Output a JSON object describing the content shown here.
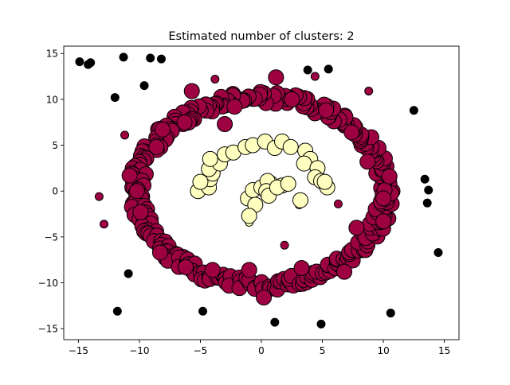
{
  "chart_data": {
    "type": "scatter",
    "title": "Estimated number of clusters: 2",
    "xlabel": "",
    "ylabel": "",
    "xlim": [
      -16.2,
      16.2
    ],
    "ylim": [
      -16.2,
      15.8
    ],
    "xticks": [
      -15,
      -10,
      -5,
      0,
      5,
      10,
      15
    ],
    "yticks": [
      -15,
      -10,
      -5,
      0,
      5,
      10,
      15
    ],
    "grid": false,
    "legend": "none",
    "point_edge_color": "#000000",
    "core_radius_px": 9.5,
    "border_radius_px": 5,
    "series": [
      {
        "color": "#9e0142",
        "shape": "ring",
        "center": [
          0,
          0
        ],
        "radius_mean": 10.2,
        "radius_jitter": 0.65,
        "count": 300,
        "core_points": [
          [
            -5.7,
            10.9
          ],
          [
            1.2,
            12.4
          ],
          [
            -3.0,
            7.3
          ],
          [
            -6.3,
            7.5
          ],
          [
            -8.1,
            6.7
          ],
          [
            8.7,
            3.2
          ],
          [
            10.5,
            1.6
          ],
          [
            10.0,
            -0.8
          ],
          [
            10.0,
            -3.3
          ],
          [
            7.8,
            -4.0
          ],
          [
            6.8,
            -8.8
          ],
          [
            3.3,
            -8.4
          ],
          [
            0.2,
            -11.6
          ],
          [
            -1.0,
            -8.6
          ],
          [
            -4.0,
            -8.6
          ],
          [
            -6.2,
            -8.3
          ],
          [
            -8.3,
            -6.7
          ],
          [
            -9.9,
            -2.3
          ],
          [
            -10.2,
            0.0
          ],
          [
            -10.8,
            1.7
          ],
          [
            -8.6,
            4.8
          ],
          [
            5.3,
            8.8
          ],
          [
            7.4,
            6.4
          ],
          [
            -2.2,
            9.2
          ],
          [
            2.5,
            10.0
          ]
        ],
        "border_points": [
          [
            -3.8,
            12.2
          ],
          [
            4.4,
            12.5
          ],
          [
            8.8,
            10.9
          ],
          [
            -11.2,
            6.1
          ],
          [
            -13.3,
            -0.6
          ],
          [
            -12.9,
            -3.6
          ],
          [
            6.3,
            -1.4
          ],
          [
            1.9,
            -5.9
          ]
        ]
      },
      {
        "color": "#ffffbf",
        "shape": "crescent",
        "core_points": [
          [
            -5.2,
            0.0
          ],
          [
            -4.3,
            0.4
          ],
          [
            -4.2,
            1.3
          ],
          [
            -4.0,
            1.9
          ],
          [
            -5.0,
            1.0
          ],
          [
            -4.3,
            2.4
          ],
          [
            -3.4,
            3.0
          ],
          [
            -4.2,
            3.5
          ],
          [
            -3.0,
            4.0
          ],
          [
            -2.3,
            4.2
          ],
          [
            -1.3,
            4.8
          ],
          [
            -0.7,
            5.0
          ],
          [
            0.3,
            5.4
          ],
          [
            1.1,
            4.7
          ],
          [
            1.7,
            5.4
          ],
          [
            2.4,
            4.8
          ],
          [
            3.6,
            4.4
          ],
          [
            4.0,
            3.5
          ],
          [
            3.5,
            3.0
          ],
          [
            4.6,
            2.5
          ],
          [
            4.4,
            1.5
          ],
          [
            4.9,
            1.1
          ],
          [
            5.4,
            0.4
          ],
          [
            5.2,
            1.0
          ],
          [
            -1.1,
            -0.8
          ],
          [
            -0.7,
            0.1
          ],
          [
            0.0,
            0.4
          ],
          [
            0.7,
            0.9
          ],
          [
            1.7,
            0.6
          ],
          [
            0.5,
            1.1
          ],
          [
            0.4,
            0.0
          ],
          [
            0.6,
            -0.5
          ],
          [
            -0.5,
            -1.5
          ],
          [
            -1.0,
            -2.7
          ],
          [
            3.2,
            -1.0
          ],
          [
            1.3,
            0.4
          ],
          [
            2.2,
            0.8
          ]
        ],
        "border_points": [
          [
            -1.0,
            -3.4
          ],
          [
            3.1,
            -1.5
          ]
        ]
      },
      {
        "color": "#000000",
        "shape": "noise",
        "core_points": [],
        "border_points": [
          [
            -14.9,
            14.1
          ],
          [
            -14.2,
            13.8
          ],
          [
            -14.0,
            14.0
          ],
          [
            -11.3,
            14.6
          ],
          [
            -9.1,
            14.5
          ],
          [
            -8.2,
            14.4
          ],
          [
            -12.0,
            10.2
          ],
          [
            -9.6,
            11.5
          ],
          [
            3.8,
            13.2
          ],
          [
            5.5,
            13.3
          ],
          [
            12.5,
            8.8
          ],
          [
            13.4,
            1.3
          ],
          [
            13.7,
            0.1
          ],
          [
            13.6,
            -1.3
          ],
          [
            14.5,
            -6.7
          ],
          [
            -10.9,
            -9.0
          ],
          [
            -11.8,
            -13.1
          ],
          [
            -4.8,
            -13.1
          ],
          [
            1.1,
            -14.3
          ],
          [
            4.9,
            -14.5
          ],
          [
            10.6,
            -13.3
          ]
        ]
      }
    ]
  }
}
